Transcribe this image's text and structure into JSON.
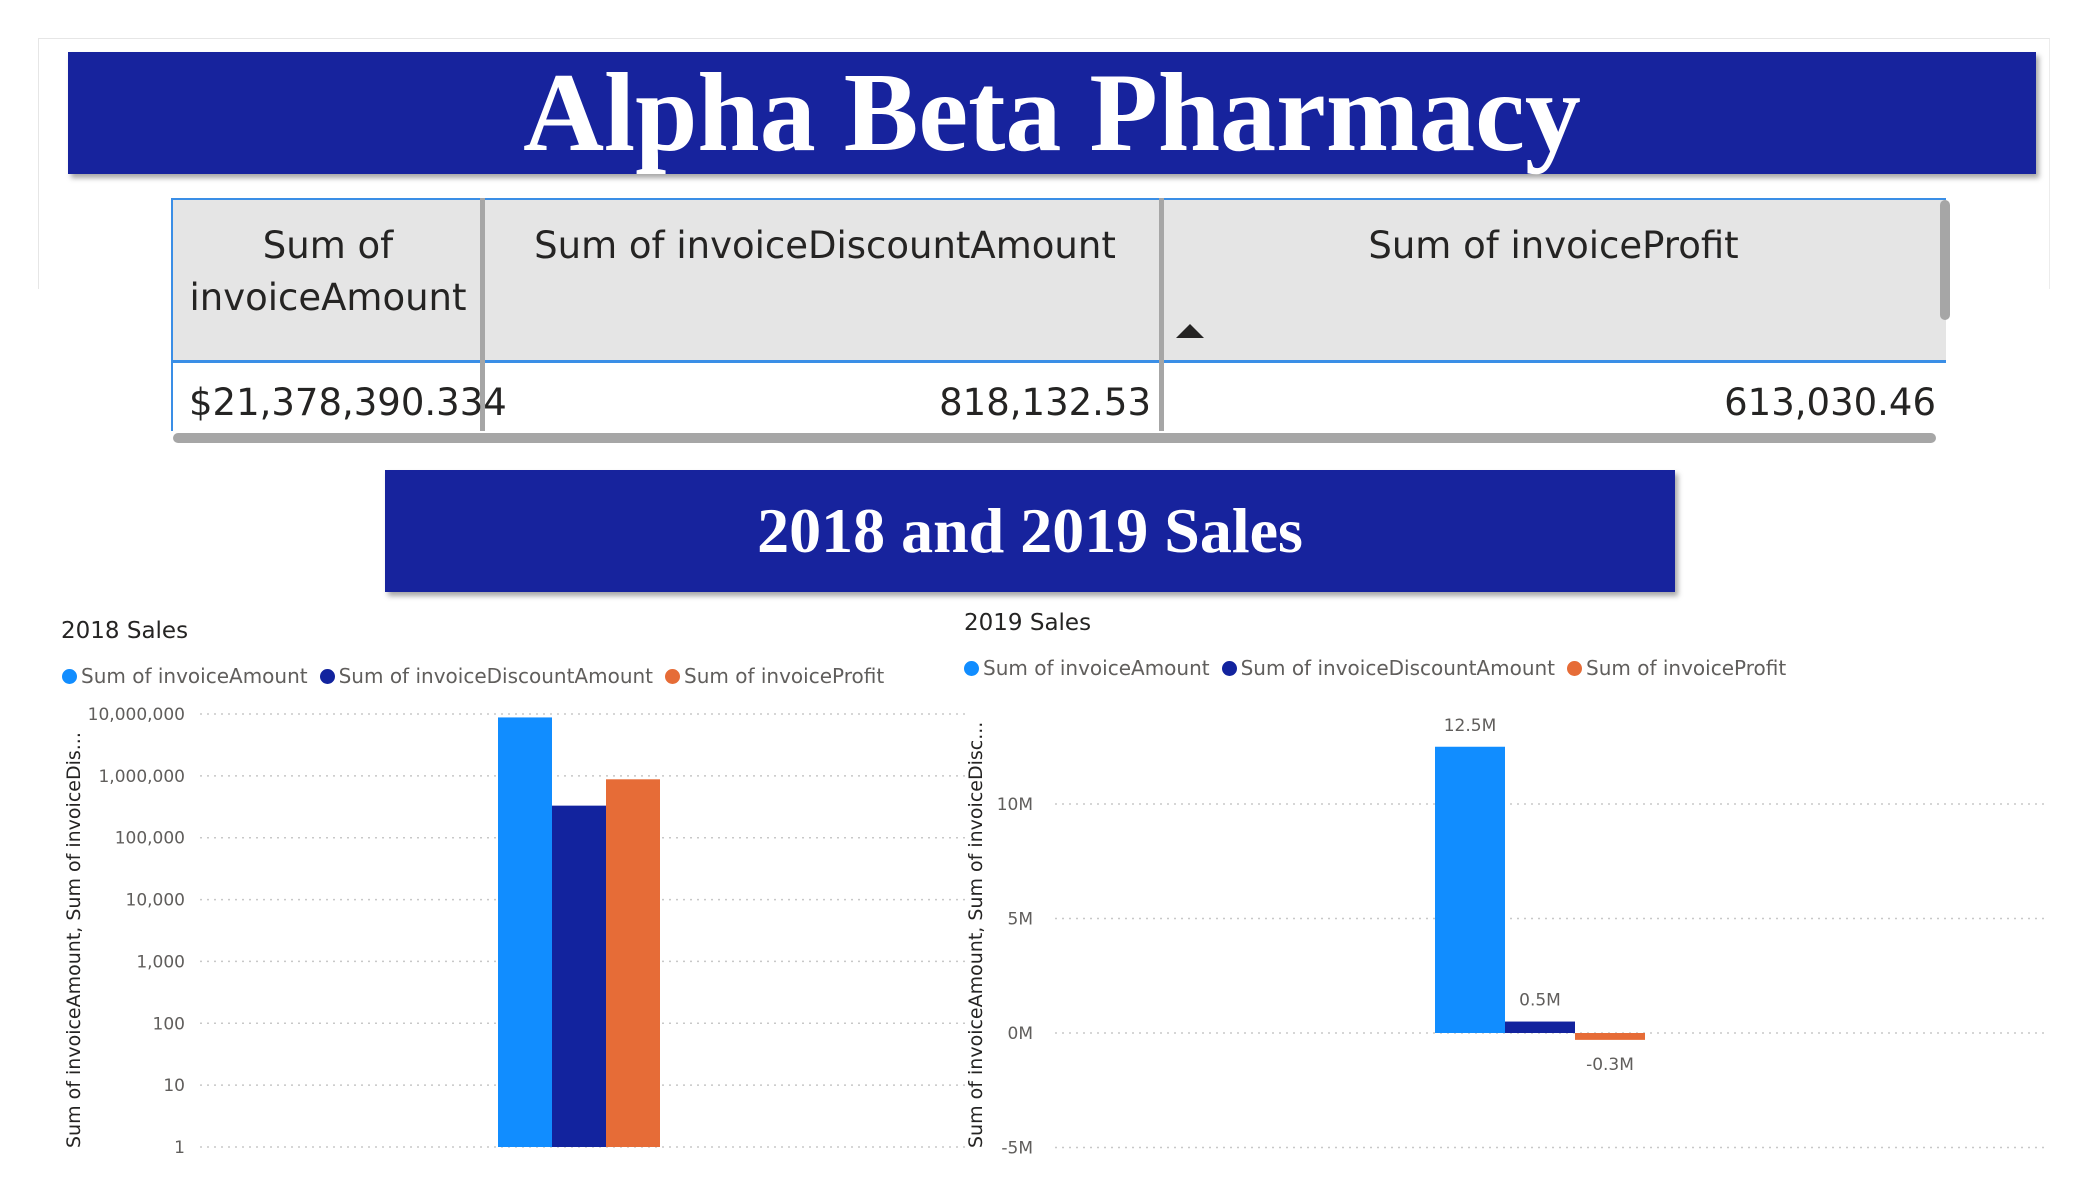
{
  "header": {
    "title": "Alpha Beta Pharmacy"
  },
  "table": {
    "columns": [
      "Sum of invoiceAmount",
      "Sum of invoiceDiscountAmount",
      "Sum of invoiceProfit"
    ],
    "row": [
      "$21,378,390.334",
      "818,132.53",
      "613,030.46"
    ],
    "sorted_column": "Sum of invoiceProfit"
  },
  "section": {
    "title": "2018 and 2019 Sales"
  },
  "colors": {
    "banner": "#17239d",
    "invoiceAmount": "#118dff",
    "invoiceDiscountAmount": "#12239e",
    "invoiceProfit": "#e66c37"
  },
  "chart_data": [
    {
      "type": "bar",
      "title": "2018 Sales",
      "ylabel": "Sum of invoiceAmount, Sum of invoiceDis...",
      "yscale": "log",
      "ylim": [
        1,
        10000000
      ],
      "yticks": [
        "10,000,000",
        "1,000,000",
        "100,000",
        "10,000",
        "1,000",
        "100",
        "10",
        "1"
      ],
      "series": [
        {
          "name": "Sum of invoiceAmount",
          "values": [
            8800000
          ]
        },
        {
          "name": "Sum of invoiceDiscountAmount",
          "values": [
            330000
          ]
        },
        {
          "name": "Sum of invoiceProfit",
          "values": [
            880000
          ]
        }
      ],
      "legend": "top-left",
      "grid": true
    },
    {
      "type": "bar",
      "title": "2019 Sales",
      "ylabel": "Sum of invoiceAmount, Sum of invoiceDisc...",
      "ylim": [
        -5000000,
        12500000
      ],
      "yticks": [
        "10M",
        "5M",
        "0M",
        "-5M"
      ],
      "series": [
        {
          "name": "Sum of invoiceAmount",
          "values": [
            12500000
          ],
          "label": "12.5M"
        },
        {
          "name": "Sum of invoiceDiscountAmount",
          "values": [
            500000
          ],
          "label": "0.5M"
        },
        {
          "name": "Sum of invoiceProfit",
          "values": [
            -300000
          ],
          "label": "-0.3M"
        }
      ],
      "legend": "top-left",
      "grid": true
    }
  ]
}
